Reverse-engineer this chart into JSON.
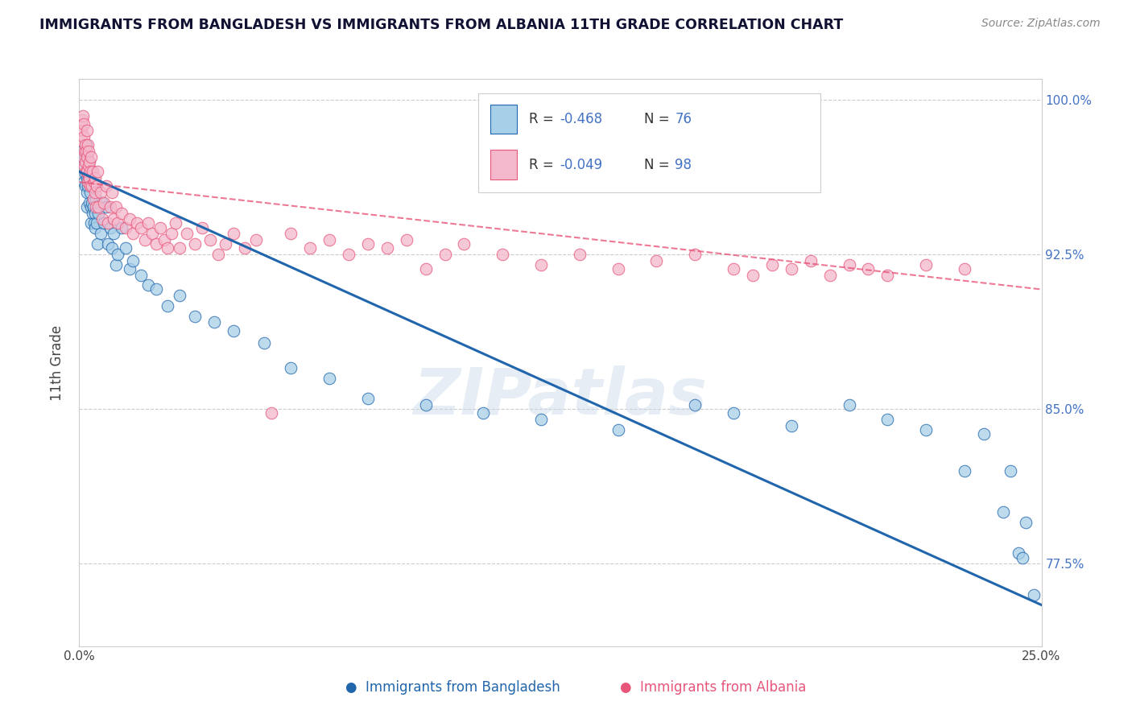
{
  "title": "IMMIGRANTS FROM BANGLADESH VS IMMIGRANTS FROM ALBANIA 11TH GRADE CORRELATION CHART",
  "source": "Source: ZipAtlas.com",
  "ylabel": "11th Grade",
  "xlim": [
    0.0,
    0.25
  ],
  "ylim": [
    0.735,
    1.01
  ],
  "yticks": [
    0.775,
    0.85,
    0.925,
    1.0
  ],
  "ytick_labels": [
    "77.5%",
    "85.0%",
    "92.5%",
    "100.0%"
  ],
  "xticks": [
    0.0,
    0.05,
    0.1,
    0.15,
    0.2,
    0.25
  ],
  "xtick_labels": [
    "0.0%",
    "",
    "",
    "",
    "",
    "25.0%"
  ],
  "legend_R_bangladesh": "-0.468",
  "legend_N_bangladesh": "76",
  "legend_R_albania": "-0.049",
  "legend_N_albania": "98",
  "color_bangladesh": "#a8cfe8",
  "color_albania": "#f4b8cc",
  "color_trend_bangladesh": "#2166ac",
  "color_trend_albania": "#e8567a",
  "watermark": "ZIPatlas",
  "bangladesh_x": [
    0.0008,
    0.001,
    0.0012,
    0.0013,
    0.0015,
    0.0016,
    0.0017,
    0.0018,
    0.0019,
    0.002,
    0.0021,
    0.0022,
    0.0023,
    0.0024,
    0.0025,
    0.0026,
    0.0028,
    0.0029,
    0.003,
    0.0031,
    0.0032,
    0.0033,
    0.0034,
    0.0036,
    0.0037,
    0.0038,
    0.004,
    0.0042,
    0.0044,
    0.0046,
    0.0048,
    0.005,
    0.0055,
    0.006,
    0.0065,
    0.007,
    0.0075,
    0.008,
    0.0085,
    0.009,
    0.0095,
    0.01,
    0.011,
    0.012,
    0.013,
    0.014,
    0.016,
    0.018,
    0.02,
    0.023,
    0.026,
    0.03,
    0.035,
    0.04,
    0.048,
    0.055,
    0.065,
    0.075,
    0.09,
    0.105,
    0.12,
    0.14,
    0.16,
    0.17,
    0.185,
    0.2,
    0.21,
    0.22,
    0.23,
    0.235,
    0.24,
    0.242,
    0.244,
    0.245,
    0.246,
    0.248
  ],
  "bangladesh_y": [
    0.975,
    0.968,
    0.96,
    0.972,
    0.964,
    0.958,
    0.978,
    0.97,
    0.962,
    0.955,
    0.948,
    0.965,
    0.958,
    0.97,
    0.962,
    0.95,
    0.966,
    0.955,
    0.948,
    0.94,
    0.958,
    0.95,
    0.945,
    0.958,
    0.948,
    0.94,
    0.945,
    0.938,
    0.952,
    0.94,
    0.93,
    0.945,
    0.935,
    0.95,
    0.94,
    0.948,
    0.93,
    0.938,
    0.928,
    0.935,
    0.92,
    0.925,
    0.938,
    0.928,
    0.918,
    0.922,
    0.915,
    0.91,
    0.908,
    0.9,
    0.905,
    0.895,
    0.892,
    0.888,
    0.882,
    0.87,
    0.865,
    0.855,
    0.852,
    0.848,
    0.845,
    0.84,
    0.852,
    0.848,
    0.842,
    0.852,
    0.845,
    0.84,
    0.82,
    0.838,
    0.8,
    0.82,
    0.78,
    0.778,
    0.795,
    0.76
  ],
  "albania_x": [
    0.0005,
    0.0007,
    0.0008,
    0.0009,
    0.001,
    0.0011,
    0.0012,
    0.0013,
    0.0014,
    0.0015,
    0.0016,
    0.0017,
    0.0018,
    0.0019,
    0.002,
    0.0021,
    0.0022,
    0.0023,
    0.0024,
    0.0025,
    0.0026,
    0.0027,
    0.0028,
    0.0029,
    0.003,
    0.0032,
    0.0034,
    0.0036,
    0.0038,
    0.004,
    0.0042,
    0.0044,
    0.0046,
    0.0048,
    0.005,
    0.0055,
    0.006,
    0.0065,
    0.007,
    0.0075,
    0.008,
    0.0085,
    0.009,
    0.0095,
    0.01,
    0.011,
    0.012,
    0.013,
    0.014,
    0.015,
    0.016,
    0.017,
    0.018,
    0.019,
    0.02,
    0.021,
    0.022,
    0.023,
    0.024,
    0.025,
    0.026,
    0.028,
    0.03,
    0.032,
    0.034,
    0.036,
    0.038,
    0.04,
    0.043,
    0.046,
    0.05,
    0.055,
    0.06,
    0.065,
    0.07,
    0.075,
    0.08,
    0.085,
    0.09,
    0.095,
    0.1,
    0.11,
    0.12,
    0.13,
    0.14,
    0.15,
    0.16,
    0.17,
    0.175,
    0.18,
    0.185,
    0.19,
    0.195,
    0.2,
    0.205,
    0.21,
    0.22,
    0.23
  ],
  "albania_y": [
    0.985,
    0.99,
    0.98,
    0.992,
    0.972,
    0.988,
    0.982,
    0.975,
    0.968,
    0.978,
    0.97,
    0.965,
    0.975,
    0.985,
    0.965,
    0.972,
    0.978,
    0.96,
    0.968,
    0.975,
    0.962,
    0.97,
    0.958,
    0.965,
    0.972,
    0.958,
    0.965,
    0.952,
    0.96,
    0.955,
    0.962,
    0.948,
    0.958,
    0.965,
    0.948,
    0.955,
    0.942,
    0.95,
    0.958,
    0.94,
    0.948,
    0.955,
    0.942,
    0.948,
    0.94,
    0.945,
    0.938,
    0.942,
    0.935,
    0.94,
    0.938,
    0.932,
    0.94,
    0.935,
    0.93,
    0.938,
    0.932,
    0.928,
    0.935,
    0.94,
    0.928,
    0.935,
    0.93,
    0.938,
    0.932,
    0.925,
    0.93,
    0.935,
    0.928,
    0.932,
    0.848,
    0.935,
    0.928,
    0.932,
    0.925,
    0.93,
    0.928,
    0.932,
    0.918,
    0.925,
    0.93,
    0.925,
    0.92,
    0.925,
    0.918,
    0.922,
    0.925,
    0.918,
    0.915,
    0.92,
    0.918,
    0.922,
    0.915,
    0.92,
    0.918,
    0.915,
    0.92,
    0.918
  ]
}
